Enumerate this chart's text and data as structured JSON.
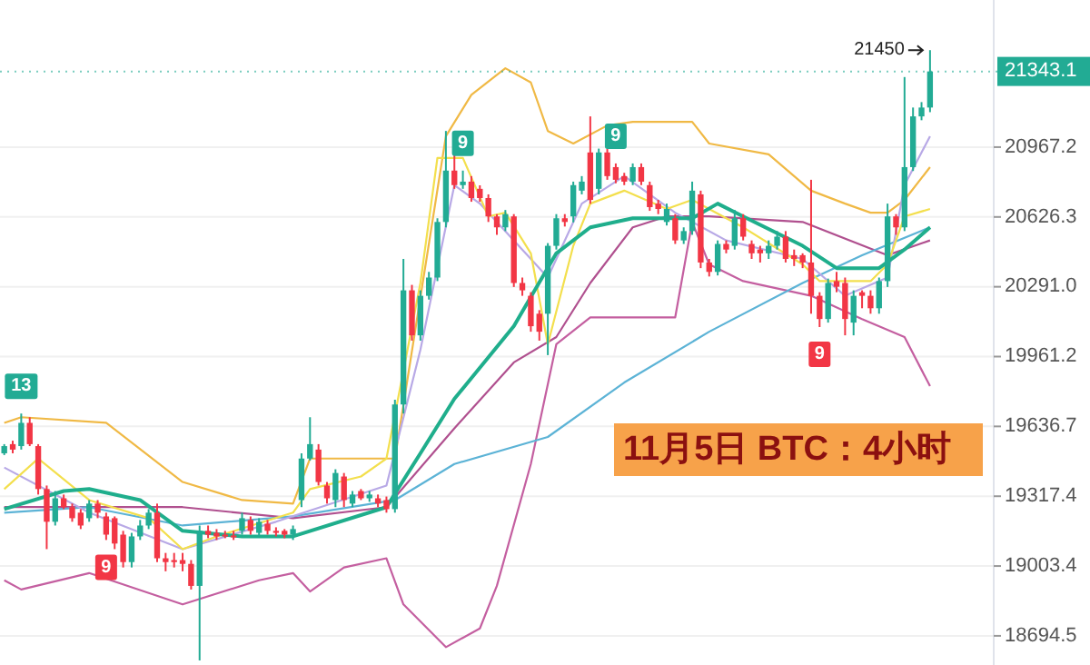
{
  "chart_data": {
    "type": "candlestick",
    "title": "11月5日 BTC：4小时",
    "categories": [
      null,
      null,
      null,
      null,
      null,
      null,
      null,
      null,
      null,
      null,
      null,
      null,
      null,
      null,
      null,
      null,
      null,
      null,
      null,
      null,
      null,
      null,
      null,
      null,
      null,
      null,
      null,
      null,
      null,
      null,
      null,
      null,
      null,
      null,
      null,
      null,
      null,
      null,
      null,
      null,
      null,
      null,
      null,
      null,
      null,
      null,
      null,
      null,
      null,
      null,
      null,
      null,
      null,
      null,
      null,
      null,
      null,
      null,
      null,
      null,
      null,
      null,
      null,
      null,
      null,
      null,
      null,
      null,
      null,
      null,
      null,
      null,
      null,
      null,
      null,
      null,
      null,
      null,
      null,
      null,
      null,
      null,
      null,
      null,
      null,
      null,
      null,
      null,
      null,
      null,
      null,
      null,
      null,
      null,
      null,
      null,
      null,
      null,
      null,
      null,
      null,
      null,
      null,
      null,
      null,
      null,
      null,
      null,
      null,
      null,
      null,
      null,
      null,
      null,
      null,
      null,
      null
    ],
    "colors": [
      "#22ab94",
      "#f23645",
      "#22ab94",
      "#f23645",
      "#f23645",
      "#f23645",
      "#22ab94",
      "#f23645",
      "#f23645",
      "#f23645",
      "#22ab94",
      "#f23645",
      "#f23645",
      "#f23645",
      "#f23645",
      "#22ab94",
      "#22ab94",
      "#22ab94",
      "#f23645",
      "#f23645",
      "#f23645",
      "#f23645",
      "#f23645",
      "#22ab94",
      "#f23645",
      "#f23645",
      "#f23645",
      "#f23645",
      "#22ab94",
      "#f23645",
      "#22ab94",
      "#f23645",
      "#f23645",
      "#f23645",
      "#22ab94",
      "#22ab94",
      "#22ab94",
      "#f23645",
      "#f23645",
      "#22ab94",
      "#f23645",
      "#22ab94",
      "#f23645",
      "#22ab94",
      "#f23645",
      "#f23645",
      "#22ab94",
      "#22ab94",
      "#f23645",
      "#22ab94",
      "#22ab94",
      "#22ab94",
      "#22ab94",
      "#f23645",
      "#22ab94",
      "#f23645",
      "#f23645",
      "#f23645",
      "#f23645",
      "#22ab94",
      "#f23645",
      "#f23645",
      "#f23645",
      "#f23645",
      "#22ab94",
      "#22ab94",
      "#f23645",
      "#22ab94",
      "#22ab94",
      "#f23645",
      "#22ab94",
      "#f23645",
      "#f23645",
      "#f23645",
      "#22ab94",
      "#f23645",
      "#f23645",
      "#f23645",
      "#22ab94",
      "#f23645",
      "#22ab94",
      "#22ab94",
      "#f23645",
      "#f23645",
      "#22ab94",
      "#f23645",
      "#22ab94",
      "#f23645",
      "#f23645",
      "#f23645",
      "#22ab94",
      "#22ab94",
      "#f23645",
      "#f23645",
      "#f23645",
      "#f23645",
      "#f23645",
      "#22ab94",
      "#f23645",
      "#f23645",
      "#22ab94",
      "#f23645",
      "#f23645",
      "#22ab94",
      "#22ab94",
      "#f23645",
      "#22ab94",
      "#22ab94",
      "#22ab94",
      "#22ab94",
      null,
      null,
      null,
      null,
      null,
      null,
      null
    ],
    "log": "y",
    "ylim": [
      18567,
      21704
    ],
    "yticks": [
      20967.2,
      20626.3,
      {
        "value": 20291,
        "label": "20291.0"
      },
      19961.2,
      19636.7,
      19317.4,
      19003.4,
      18694.5
    ],
    "grid": "y",
    "ref_lines": [
      {
        "axis": "y",
        "value": 21343.1,
        "label": "21343.1",
        "color": "#22ab94"
      }
    ],
    "annotations": [
      "13",
      "9",
      "9",
      "9",
      "9",
      "21450"
    ],
    "ohlc": [
      [
        19513,
        19555,
        19505,
        19546
      ],
      [
        19555,
        19571,
        19513,
        19530
      ],
      [
        19546,
        19696,
        19530,
        19653
      ],
      [
        19653,
        19679,
        19546,
        19555
      ],
      [
        19546,
        19555,
        19325,
        19350
      ],
      [
        19350,
        19366,
        19079,
        19202
      ],
      [
        19202,
        19341,
        19185,
        19308
      ],
      [
        19308,
        19325,
        19259,
        19268
      ],
      [
        19268,
        19284,
        19202,
        19218
      ],
      [
        19243,
        19259,
        19169,
        19185
      ],
      [
        19218,
        19300,
        19202,
        19284
      ],
      [
        19284,
        19300,
        19218,
        19243
      ],
      [
        19226,
        19243,
        19120,
        19144
      ],
      [
        19218,
        19226,
        19079,
        19104
      ],
      [
        19144,
        19161,
        18997,
        19021
      ],
      [
        19021,
        19152,
        18997,
        19136
      ],
      [
        19136,
        19210,
        19120,
        19185
      ],
      [
        19185,
        19259,
        19169,
        19243
      ],
      [
        19243,
        19284,
        19021,
        19038
      ],
      [
        19038,
        19062,
        18980,
        19021
      ],
      [
        19030,
        19062,
        18997,
        19021
      ],
      [
        19030,
        19062,
        18980,
        19013
      ],
      [
        19013,
        19030,
        18899,
        18915
      ],
      [
        18915,
        19185,
        18587,
        19161
      ],
      [
        19161,
        19185,
        19128,
        19144
      ],
      [
        19152,
        19169,
        19120,
        19136
      ],
      [
        19144,
        19161,
        19128,
        19140
      ],
      [
        19140,
        19161,
        19120,
        19136
      ],
      [
        19161,
        19243,
        19144,
        19218
      ],
      [
        19210,
        19226,
        19144,
        19161
      ],
      [
        19152,
        19218,
        19136,
        19202
      ],
      [
        19193,
        19210,
        19144,
        19161
      ],
      [
        19161,
        19177,
        19136,
        19152
      ],
      [
        19161,
        19169,
        19128,
        19144
      ],
      [
        19144,
        19185,
        19120,
        19169
      ],
      [
        19300,
        19513,
        19268,
        19489
      ],
      [
        19489,
        19679,
        19480,
        19555
      ],
      [
        19530,
        19555,
        19366,
        19382
      ],
      [
        19366,
        19382,
        19284,
        19308
      ],
      [
        19300,
        19440,
        19268,
        19423
      ],
      [
        19407,
        19423,
        19268,
        19300
      ],
      [
        19284,
        19341,
        19268,
        19325
      ],
      [
        19341,
        19350,
        19300,
        19308
      ],
      [
        19308,
        19341,
        19292,
        19325
      ],
      [
        19308,
        19325,
        19268,
        19284
      ],
      [
        19300,
        19316,
        19243,
        19259
      ],
      [
        19259,
        19760,
        19243,
        19738
      ],
      [
        19738,
        20424,
        19696,
        20274
      ],
      [
        20274,
        20300,
        20036,
        20061
      ],
      [
        20061,
        20274,
        20036,
        20248
      ],
      [
        20248,
        20362,
        20230,
        20335
      ],
      [
        20335,
        20620,
        20318,
        20602
      ],
      [
        20602,
        21047,
        20576,
        20852
      ],
      [
        20852,
        20941,
        20763,
        20781
      ],
      [
        20781,
        20852,
        20763,
        20798
      ],
      [
        20798,
        20825,
        20700,
        20718
      ],
      [
        20763,
        20780,
        20700,
        20718
      ],
      [
        20718,
        20736,
        20602,
        20629
      ],
      [
        20629,
        20640,
        20540,
        20576
      ],
      [
        20576,
        20660,
        20558,
        20640
      ],
      [
        20629,
        20640,
        20290,
        20309
      ],
      [
        20309,
        20335,
        20248,
        20274
      ],
      [
        20248,
        20265,
        20078,
        20104
      ],
      [
        20163,
        20180,
        20036,
        20078
      ],
      [
        20163,
        20500,
        19968,
        20487
      ],
      [
        20487,
        20640,
        20469,
        20620
      ],
      [
        20620,
        20640,
        20580,
        20602
      ],
      [
        20629,
        20798,
        20600,
        20781
      ],
      [
        20754,
        20825,
        20736,
        20798
      ],
      [
        20941,
        21119,
        20690,
        20709
      ],
      [
        20763,
        20960,
        20736,
        20941
      ],
      [
        20941,
        20960,
        20807,
        20825
      ],
      [
        20869,
        20887,
        20790,
        20807
      ],
      [
        20825,
        20841,
        20781,
        20798
      ],
      [
        20798,
        20887,
        20781,
        20869
      ],
      [
        20869,
        20887,
        20781,
        20798
      ],
      [
        20781,
        20798,
        20656,
        20674
      ],
      [
        20691,
        20709,
        20640,
        20665
      ],
      [
        20602,
        20691,
        20585,
        20665
      ],
      [
        20620,
        20640,
        20496,
        20513
      ],
      [
        20513,
        20576,
        20496,
        20558
      ],
      [
        20558,
        20798,
        20540,
        20754
      ],
      [
        20736,
        20754,
        20380,
        20407
      ],
      [
        20407,
        20424,
        20340,
        20362
      ],
      [
        20362,
        20513,
        20345,
        20496
      ],
      [
        20496,
        20513,
        20451,
        20469
      ],
      [
        20487,
        20660,
        20469,
        20620
      ],
      [
        20620,
        20640,
        20513,
        20531
      ],
      [
        20496,
        20513,
        20424,
        20451
      ],
      [
        20469,
        20487,
        20407,
        20451
      ],
      [
        20451,
        20513,
        20424,
        20487
      ],
      [
        20487,
        20558,
        20469,
        20531
      ],
      [
        20531,
        20558,
        20407,
        20424
      ],
      [
        20442,
        20469,
        20390,
        20424
      ],
      [
        20442,
        20451,
        20380,
        20407
      ],
      [
        20407,
        20807,
        20163,
        20248
      ],
      [
        20248,
        20265,
        20100,
        20138
      ],
      [
        20138,
        20330,
        20121,
        20309
      ],
      [
        20318,
        20362,
        20265,
        20291
      ],
      [
        20309,
        20335,
        20061,
        20138
      ],
      [
        20121,
        20274,
        20061,
        20248
      ],
      [
        20265,
        20274,
        20189,
        20248
      ],
      [
        20248,
        20274,
        20163,
        20189
      ],
      [
        20189,
        20335,
        20163,
        20318
      ],
      [
        20318,
        20691,
        20290,
        20629
      ],
      [
        20629,
        20640,
        20540,
        20576
      ],
      [
        20576,
        21315,
        20558,
        20869
      ],
      [
        20869,
        21163,
        20850,
        21119
      ],
      [
        21119,
        21190,
        21100,
        21163
      ],
      [
        21163,
        21450,
        21140,
        21343.1
      ],
      null,
      null,
      null,
      null,
      null,
      null,
      null
    ],
    "series": [
      {
        "type": "line",
        "color": "#f0b945",
        "values": [
          19653,
          null,
          19679,
          null,
          null,
          null,
          null,
          null,
          null,
          null,
          null,
          null,
          19653,
          null,
          null,
          null,
          null,
          null,
          null,
          null,
          null,
          19382,
          null,
          null,
          null,
          null,
          null,
          null,
          19300,
          null,
          null,
          null,
          null,
          null,
          19284,
          null,
          19489,
          null,
          null,
          null,
          null,
          null,
          null,
          null,
          null,
          19489,
          19489,
          null,
          null,
          null,
          null,
          null,
          21021,
          null,
          null,
          21226,
          null,
          null,
          null,
          21359,
          null,
          null,
          21288,
          null,
          21047,
          null,
          null,
          20985,
          null,
          null,
          null,
          21074,
          null,
          null,
          21092,
          null,
          null,
          null,
          null,
          null,
          null,
          21092,
          null,
          20985,
          null,
          null,
          null,
          null,
          null,
          null,
          20932,
          null,
          null,
          null,
          null,
          20754,
          null,
          null,
          null,
          20691,
          null,
          null,
          20647,
          null,
          20647,
          null,
          20709,
          null,
          null,
          20869,
          null,
          null,
          null,
          null,
          null,
          null,
          null
        ]
      },
      {
        "type": "line",
        "color": "#c45fa0",
        "values": [
          18940,
          null,
          18899,
          null,
          null,
          null,
          null,
          null,
          null,
          null,
          18972,
          null,
          null,
          null,
          null,
          null,
          null,
          null,
          null,
          null,
          null,
          18833,
          null,
          null,
          null,
          null,
          null,
          null,
          null,
          null,
          18940,
          null,
          null,
          null,
          18972,
          null,
          18890,
          null,
          null,
          null,
          18997,
          null,
          null,
          null,
          null,
          19038,
          null,
          18833,
          null,
          null,
          null,
          null,
          18645,
          null,
          null,
          null,
          18727,
          null,
          18915,
          null,
          null,
          null,
          19464,
          null,
          null,
          20019,
          null,
          null,
          null,
          20146,
          null,
          null,
          null,
          null,
          null,
          null,
          null,
          null,
          null,
          20146,
          null,
          20602,
          null,
          20398,
          null,
          null,
          null,
          20318,
          null,
          null,
          null,
          null,
          null,
          null,
          null,
          20248,
          null,
          null,
          null,
          null,
          null,
          20138,
          null,
          null,
          null,
          null,
          20053,
          null,
          null,
          19823,
          null,
          null,
          null,
          null,
          null,
          null,
          null
        ]
      },
      {
        "type": "line",
        "color": "#b0508f",
        "values": [
          19268,
          null,
          null,
          null,
          null,
          null,
          null,
          null,
          null,
          null,
          null,
          null,
          null,
          null,
          null,
          null,
          null,
          null,
          null,
          null,
          null,
          19268,
          null,
          null,
          null,
          null,
          null,
          null,
          null,
          null,
          null,
          null,
          null,
          null,
          19218,
          null,
          null,
          null,
          null,
          null,
          null,
          null,
          null,
          null,
          null,
          19268,
          null,
          null,
          null,
          null,
          null,
          null,
          null,
          19628,
          null,
          null,
          null,
          null,
          null,
          null,
          19934,
          null,
          null,
          null,
          null,
          20053,
          null,
          null,
          null,
          20309,
          null,
          null,
          null,
          null,
          20576,
          null,
          null,
          null,
          20629,
          null,
          null,
          null,
          null,
          20629,
          null,
          null,
          null,
          null,
          null,
          null,
          null,
          null,
          null,
          null,
          20602,
          null,
          null,
          null,
          null,
          null,
          null,
          null,
          null,
          null,
          20442,
          null,
          null,
          null,
          null,
          20513,
          null,
          null,
          null,
          null,
          null,
          null,
          null
        ]
      },
      {
        "type": "line",
        "color": "#5cb3d6",
        "values": [
          19243,
          null,
          null,
          null,
          null,
          null,
          null,
          null,
          null,
          null,
          19268,
          null,
          null,
          null,
          null,
          null,
          null,
          null,
          null,
          null,
          null,
          19185,
          null,
          null,
          null,
          null,
          null,
          null,
          null,
          null,
          null,
          null,
          null,
          null,
          19226,
          null,
          null,
          null,
          null,
          null,
          null,
          null,
          null,
          null,
          null,
          null,
          19300,
          null,
          null,
          null,
          null,
          null,
          null,
          19464,
          null,
          null,
          null,
          null,
          null,
          null,
          null,
          null,
          null,
          null,
          19588,
          null,
          null,
          null,
          null,
          null,
          null,
          null,
          null,
          19840,
          null,
          null,
          null,
          null,
          null,
          null,
          null,
          null,
          null,
          20078,
          null,
          null,
          null,
          null,
          null,
          null,
          null,
          null,
          null,
          null,
          20309,
          null,
          null,
          null,
          null,
          null,
          null,
          20442,
          null,
          null,
          null,
          null,
          null,
          null,
          null,
          20576,
          null,
          null,
          null,
          null,
          null,
          null,
          null
        ]
      },
      {
        "type": "line",
        "color": "#b8a9e6",
        "values": [
          19448,
          null,
          null,
          null,
          null,
          null,
          null,
          null,
          null,
          null,
          19243,
          null,
          null,
          null,
          null,
          null,
          null,
          null,
          null,
          null,
          null,
          19079,
          null,
          null,
          null,
          null,
          null,
          null,
          null,
          null,
          null,
          null,
          19202,
          null,
          null,
          null,
          null,
          null,
          null,
          null,
          null,
          null,
          null,
          null,
          null,
          19366,
          null,
          null,
          null,
          19993,
          null,
          null,
          null,
          20781,
          null,
          null,
          20691,
          null,
          null,
          null,
          null,
          null,
          20424,
          null,
          20335,
          null,
          null,
          null,
          20691,
          null,
          null,
          null,
          null,
          20825,
          null,
          null,
          null,
          null,
          null,
          20647,
          null,
          null,
          null,
          null,
          null,
          20513,
          null,
          null,
          null,
          null,
          null,
          null,
          null,
          null,
          20424,
          null,
          null,
          null,
          null,
          20248,
          null,
          null,
          null,
          null,
          20335,
          null,
          20781,
          null,
          null,
          21021,
          null,
          null,
          null,
          null,
          null,
          null,
          null
        ]
      },
      {
        "type": "line",
        "color": "#f3df4d",
        "values": [
          19350,
          null,
          null,
          null,
          19489,
          null,
          null,
          null,
          null,
          null,
          19300,
          null,
          null,
          null,
          null,
          null,
          null,
          19218,
          null,
          null,
          null,
          19079,
          null,
          null,
          null,
          19136,
          null,
          null,
          null,
          null,
          null,
          null,
          null,
          null,
          19243,
          null,
          19350,
          null,
          null,
          null,
          null,
          null,
          19407,
          null,
          null,
          19489,
          null,
          null,
          null,
          20309,
          null,
          20914,
          null,
          null,
          20914,
          null,
          null,
          20629,
          null,
          20647,
          null,
          null,
          20451,
          null,
          20019,
          null,
          null,
          20487,
          null,
          20691,
          null,
          null,
          null,
          20754,
          null,
          null,
          null,
          null,
          20665,
          null,
          null,
          20709,
          null,
          null,
          null,
          null,
          null,
          20576,
          null,
          null,
          null,
          null,
          null,
          null,
          20398,
          null,
          20318,
          null,
          null,
          null,
          null,
          null,
          20318,
          null,
          20398,
          null,
          20629,
          null,
          null,
          20665,
          null,
          null,
          null,
          null,
          null,
          null,
          null
        ]
      },
      {
        "type": "line",
        "color": "#1fae8c",
        "values": [
          19259,
          null,
          null,
          null,
          null,
          null,
          null,
          19341,
          null,
          null,
          19350,
          null,
          null,
          null,
          null,
          null,
          19300,
          null,
          null,
          null,
          null,
          19161,
          null,
          null,
          null,
          null,
          null,
          null,
          19136,
          null,
          null,
          null,
          null,
          null,
          19136,
          null,
          null,
          null,
          null,
          null,
          null,
          null,
          null,
          null,
          null,
          19268,
          null,
          null,
          null,
          19513,
          null,
          null,
          null,
          19764,
          null,
          null,
          null,
          null,
          null,
          null,
          20104,
          null,
          null,
          null,
          null,
          20451,
          null,
          null,
          null,
          20576,
          null,
          null,
          null,
          null,
          20620,
          null,
          null,
          null,
          null,
          null,
          null,
          20620,
          null,
          null,
          20691,
          null,
          null,
          20629,
          null,
          null,
          null,
          null,
          null,
          null,
          20487,
          null,
          null,
          null,
          20380,
          null,
          null,
          null,
          null,
          20380,
          null,
          null,
          20469,
          null,
          null,
          20576,
          null,
          null,
          null,
          null,
          null,
          null,
          null
        ]
      }
    ]
  }
}
